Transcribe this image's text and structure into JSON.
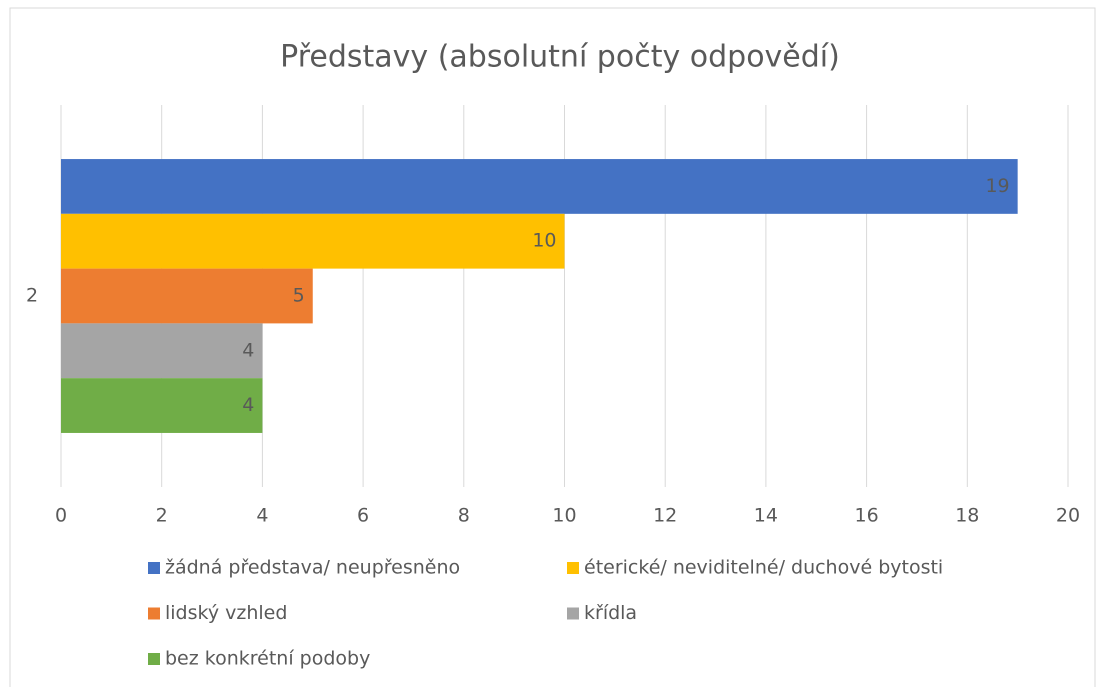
{
  "chart_data": {
    "type": "bar",
    "orientation": "horizontal",
    "title": "Představy (absolutní počty odpovědí)",
    "categories": [
      "2"
    ],
    "series": [
      {
        "name": "žádná představa/ neupřesněno",
        "color": "#4472c4",
        "values": [
          19
        ]
      },
      {
        "name": "éterické/ neviditelné/ duchové bytosti",
        "color": "#ffc000",
        "values": [
          10
        ]
      },
      {
        "name": "lidský vzhled",
        "color": "#ed7d31",
        "values": [
          5
        ]
      },
      {
        "name": "křídla",
        "color": "#a5a5a5",
        "values": [
          4
        ]
      },
      {
        "name": "bez konkrétní podoby",
        "color": "#70ad47",
        "values": [
          4
        ]
      }
    ],
    "xlim": [
      0,
      20
    ],
    "xticks": [
      0,
      2,
      4,
      6,
      8,
      10,
      12,
      14,
      16,
      18,
      20
    ],
    "grid": true,
    "legend": "bottom",
    "data_labels": true
  }
}
